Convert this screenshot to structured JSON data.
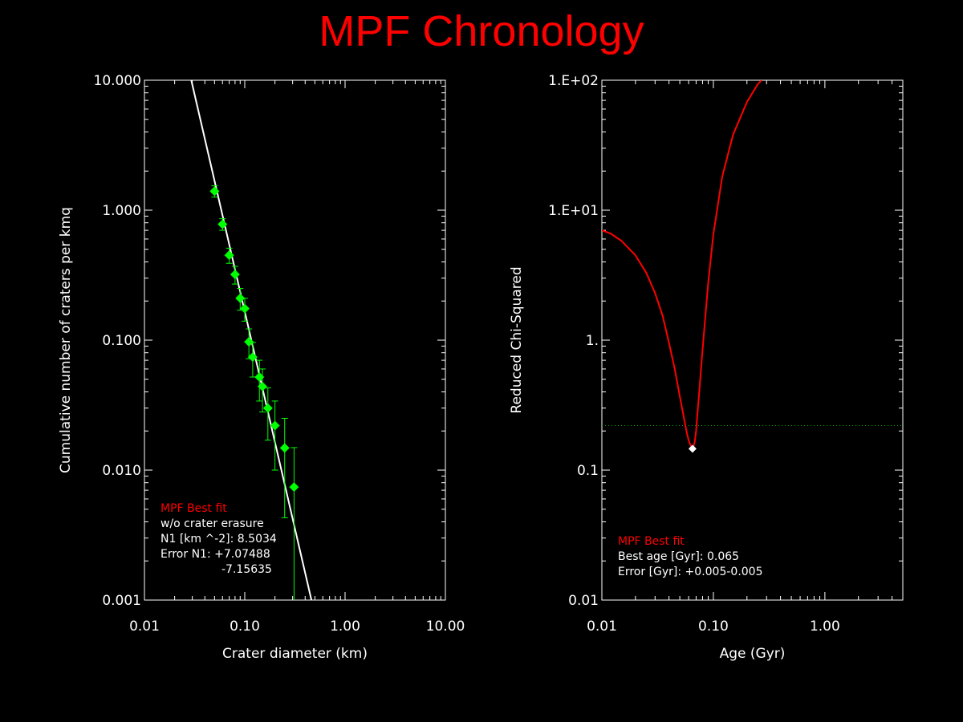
{
  "title": "MPF Chronology",
  "chart_data": [
    {
      "type": "scatter",
      "xscale": "log",
      "yscale": "log",
      "xlim": [
        0.01,
        10
      ],
      "ylim": [
        0.001,
        10
      ],
      "xlabel": "Crater diameter (km)",
      "ylabel": "Cumulative number of craters per kmq",
      "xticks": [
        0.01,
        0.1,
        1,
        10
      ],
      "xtick_labels": [
        "0.01",
        "0.10",
        "1.00",
        "10.00"
      ],
      "yticks": [
        0.001,
        0.01,
        0.1,
        1,
        10
      ],
      "ytick_labels": [
        "0.001",
        "0.010",
        "0.100",
        "1.000",
        "10.000"
      ],
      "grid": false,
      "points": [
        {
          "x": 0.05,
          "y": 1.4,
          "err_lo": 0.14,
          "err_hi": 0.14
        },
        {
          "x": 0.06,
          "y": 0.78,
          "err_lo": 0.08,
          "err_hi": 0.08
        },
        {
          "x": 0.07,
          "y": 0.45,
          "err_lo": 0.06,
          "err_hi": 0.06
        },
        {
          "x": 0.08,
          "y": 0.32,
          "err_lo": 0.05,
          "err_hi": 0.05
        },
        {
          "x": 0.09,
          "y": 0.21,
          "err_lo": 0.04,
          "err_hi": 0.04
        },
        {
          "x": 0.1,
          "y": 0.175,
          "err_lo": 0.035,
          "err_hi": 0.035
        },
        {
          "x": 0.11,
          "y": 0.097,
          "err_lo": 0.025,
          "err_hi": 0.025
        },
        {
          "x": 0.12,
          "y": 0.074,
          "err_lo": 0.022,
          "err_hi": 0.022
        },
        {
          "x": 0.14,
          "y": 0.052,
          "err_lo": 0.018,
          "err_hi": 0.018
        },
        {
          "x": 0.15,
          "y": 0.044,
          "err_lo": 0.016,
          "err_hi": 0.016
        },
        {
          "x": 0.17,
          "y": 0.03,
          "err_lo": 0.013,
          "err_hi": 0.013
        },
        {
          "x": 0.2,
          "y": 0.022,
          "err_lo": 0.012,
          "err_hi": 0.012
        },
        {
          "x": 0.25,
          "y": 0.0148,
          "err_lo": 0.0105,
          "err_hi": 0.0102
        },
        {
          "x": 0.31,
          "y": 0.0074,
          "err_lo": 0.0074,
          "err_hi": 0.0075
        }
      ],
      "point_color": "#00ff00",
      "fit_line": {
        "x": [
          0.0293,
          0.462
        ],
        "y": [
          10.0,
          0.001
        ],
        "color": "#ffffff"
      },
      "annotation": {
        "title": "MPF Best fit",
        "lines": [
          "w/o crater erasure",
          "N1 [km ^-2]: 8.5034",
          "Error N1: +7.07488",
          "-7.15635"
        ]
      }
    },
    {
      "type": "line",
      "xscale": "log",
      "yscale": "log",
      "xlim": [
        0.01,
        5
      ],
      "ylim": [
        0.01,
        100
      ],
      "xlabel": "Age (Gyr)",
      "ylabel": "Reduced Chi-Squared",
      "xticks": [
        0.01,
        0.1,
        1
      ],
      "xtick_labels": [
        "0.01",
        "0.10",
        "1.00"
      ],
      "yticks": [
        0.01,
        0.1,
        1,
        10,
        100
      ],
      "ytick_labels": [
        "0.01",
        "0.1",
        "1.",
        "1.E+01",
        "1.E+02"
      ],
      "grid": false,
      "series": [
        {
          "color": "#ff0000",
          "x": [
            0.01,
            0.012,
            0.015,
            0.02,
            0.025,
            0.03,
            0.035,
            0.04,
            0.045,
            0.05,
            0.055,
            0.058,
            0.06,
            0.062,
            0.064,
            0.065,
            0.066,
            0.068,
            0.07,
            0.072,
            0.075,
            0.08,
            0.09,
            0.1,
            0.12,
            0.15,
            0.2,
            0.25,
            0.27
          ],
          "y": [
            7.0,
            6.6,
            5.8,
            4.5,
            3.3,
            2.3,
            1.55,
            0.95,
            0.6,
            0.37,
            0.24,
            0.19,
            0.17,
            0.157,
            0.15,
            0.148,
            0.15,
            0.165,
            0.2,
            0.27,
            0.42,
            0.85,
            2.8,
            6.5,
            18.0,
            38.0,
            68.0,
            93.0,
            100.0
          ]
        }
      ],
      "best_point": {
        "x": 0.065,
        "y": 0.146,
        "color": "#ffffff"
      },
      "reference_line": {
        "y": 0.22,
        "style": "dotted",
        "color": "#00aa00"
      },
      "annotation": {
        "title": "MPF Best fit",
        "lines": [
          "Best age [Gyr]: 0.065",
          "Error [Gyr]: +0.005-0.005"
        ]
      }
    }
  ]
}
